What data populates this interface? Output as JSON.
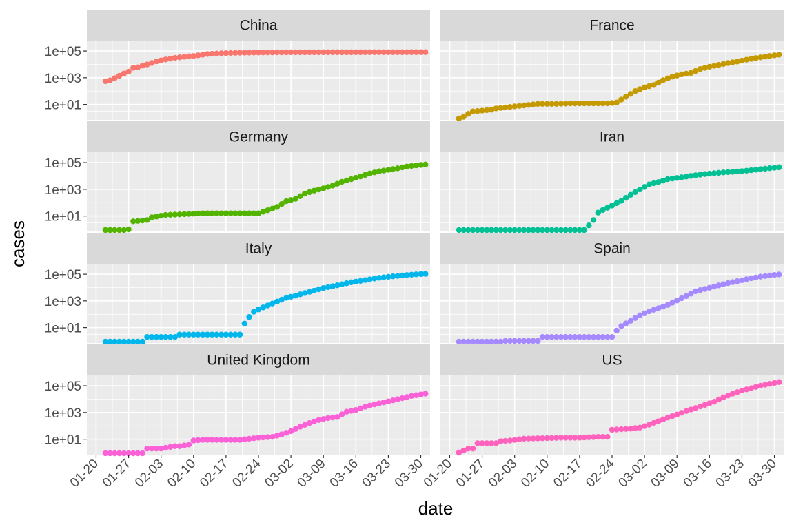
{
  "chart_data": {
    "type": "scatter",
    "facet_layout": "4 rows x 2 columns, facet_wrap by country, shared axes",
    "x_type": "date",
    "y_scale": "log10",
    "xlabel": "date",
    "ylabel": "cases",
    "xlim": [
      "2020-01-18",
      "2020-04-01"
    ],
    "ylim": [
      0.7,
      600000
    ],
    "x_ticks": [
      "2020-01-20",
      "2020-01-27",
      "2020-02-03",
      "2020-02-10",
      "2020-02-17",
      "2020-02-24",
      "2020-03-02",
      "2020-03-09",
      "2020-03-16",
      "2020-03-23",
      "2020-03-30"
    ],
    "x_tick_labels": [
      "01-20",
      "01-27",
      "02-03",
      "02-10",
      "02-17",
      "02-24",
      "03-02",
      "03-09",
      "03-16",
      "03-23",
      "03-30"
    ],
    "y_ticks": [
      10,
      1000,
      100000
    ],
    "y_tick_labels": [
      "1e+01",
      "1e+03",
      "1e+05"
    ],
    "grid": true,
    "legend": "none",
    "panel_background": "#ebebeb",
    "strip_background": "#d9d9d9",
    "facets": [
      {
        "name": "China",
        "color": "#F8766D",
        "points": [
          [
            "2020-01-22",
            548
          ],
          [
            "2020-01-23",
            643
          ],
          [
            "2020-01-24",
            920
          ],
          [
            "2020-01-25",
            1406
          ],
          [
            "2020-01-26",
            2075
          ],
          [
            "2020-01-27",
            2877
          ],
          [
            "2020-01-28",
            5509
          ],
          [
            "2020-01-29",
            6087
          ],
          [
            "2020-01-30",
            8141
          ],
          [
            "2020-01-31",
            9802
          ],
          [
            "2020-02-02",
            16630
          ],
          [
            "2020-02-04",
            23524
          ],
          [
            "2020-02-06",
            30587
          ],
          [
            "2020-02-08",
            37120
          ],
          [
            "2020-02-10",
            42306
          ],
          [
            "2020-02-13",
            59865
          ],
          [
            "2020-02-16",
            68347
          ],
          [
            "2020-02-20",
            74675
          ],
          [
            "2020-02-25",
            77754
          ],
          [
            "2020-03-01",
            79932
          ],
          [
            "2020-03-08",
            80699
          ],
          [
            "2020-03-15",
            81003
          ],
          [
            "2020-03-22",
            81435
          ],
          [
            "2020-03-31",
            82279
          ]
        ]
      },
      {
        "name": "France",
        "color": "#C49A00",
        "points": [
          [
            "2020-01-22",
            0
          ],
          [
            "2020-01-24",
            2
          ],
          [
            "2020-01-25",
            3
          ],
          [
            "2020-01-29",
            4
          ],
          [
            "2020-01-30",
            5
          ],
          [
            "2020-02-01",
            6
          ],
          [
            "2020-02-08",
            11
          ],
          [
            "2020-02-12",
            11
          ],
          [
            "2020-02-15",
            12
          ],
          [
            "2020-02-23",
            12
          ],
          [
            "2020-02-25",
            14
          ],
          [
            "2020-02-27",
            38
          ],
          [
            "2020-02-29",
            100
          ],
          [
            "2020-03-02",
            191
          ],
          [
            "2020-03-04",
            285
          ],
          [
            "2020-03-06",
            653
          ],
          [
            "2020-03-08",
            1209
          ],
          [
            "2020-03-10",
            1784
          ],
          [
            "2020-03-12",
            2284
          ],
          [
            "2020-03-14",
            4499
          ],
          [
            "2020-03-16",
            6650
          ],
          [
            "2020-03-18",
            9105
          ],
          [
            "2020-03-20",
            12612
          ],
          [
            "2020-03-22",
            16243
          ],
          [
            "2020-03-24",
            22304
          ],
          [
            "2020-03-26",
            29551
          ],
          [
            "2020-03-28",
            38105
          ],
          [
            "2020-03-31",
            52827
          ]
        ]
      },
      {
        "name": "Germany",
        "color": "#53B400",
        "points": [
          [
            "2020-01-22",
            0
          ],
          [
            "2020-01-26",
            0
          ],
          [
            "2020-01-27",
            1
          ],
          [
            "2020-01-28",
            4
          ],
          [
            "2020-01-31",
            5
          ],
          [
            "2020-02-01",
            8
          ],
          [
            "2020-02-04",
            12
          ],
          [
            "2020-02-12",
            16
          ],
          [
            "2020-02-21",
            16
          ],
          [
            "2020-02-24",
            16
          ],
          [
            "2020-02-26",
            27
          ],
          [
            "2020-02-28",
            48
          ],
          [
            "2020-03-01",
            130
          ],
          [
            "2020-03-03",
            196
          ],
          [
            "2020-03-05",
            482
          ],
          [
            "2020-03-07",
            799
          ],
          [
            "2020-03-09",
            1176
          ],
          [
            "2020-03-11",
            1908
          ],
          [
            "2020-03-13",
            3675
          ],
          [
            "2020-03-15",
            5795
          ],
          [
            "2020-03-17",
            9257
          ],
          [
            "2020-03-19",
            15320
          ],
          [
            "2020-03-21",
            22213
          ],
          [
            "2020-03-23",
            29056
          ],
          [
            "2020-03-25",
            37323
          ],
          [
            "2020-03-27",
            50871
          ],
          [
            "2020-03-29",
            62095
          ],
          [
            "2020-03-31",
            71808
          ]
        ]
      },
      {
        "name": "Iran",
        "color": "#00C094",
        "points": [
          [
            "2020-01-22",
            0
          ],
          [
            "2020-01-29",
            0
          ],
          [
            "2020-02-05",
            0
          ],
          [
            "2020-02-12",
            0
          ],
          [
            "2020-02-18",
            0
          ],
          [
            "2020-02-19",
            2
          ],
          [
            "2020-02-20",
            5
          ],
          [
            "2020-02-21",
            18
          ],
          [
            "2020-02-22",
            28
          ],
          [
            "2020-02-24",
            61
          ],
          [
            "2020-02-26",
            139
          ],
          [
            "2020-02-28",
            388
          ],
          [
            "2020-03-01",
            978
          ],
          [
            "2020-03-03",
            2336
          ],
          [
            "2020-03-05",
            3513
          ],
          [
            "2020-03-07",
            5823
          ],
          [
            "2020-03-09",
            7161
          ],
          [
            "2020-03-11",
            9000
          ],
          [
            "2020-03-13",
            11364
          ],
          [
            "2020-03-15",
            13938
          ],
          [
            "2020-03-17",
            16169
          ],
          [
            "2020-03-19",
            18407
          ],
          [
            "2020-03-21",
            20610
          ],
          [
            "2020-03-23",
            23049
          ],
          [
            "2020-03-25",
            27017
          ],
          [
            "2020-03-27",
            32332
          ],
          [
            "2020-03-29",
            38309
          ],
          [
            "2020-03-31",
            44605
          ]
        ]
      },
      {
        "name": "Italy",
        "color": "#00B6EB",
        "points": [
          [
            "2020-01-22",
            0
          ],
          [
            "2020-01-26",
            0
          ],
          [
            "2020-01-30",
            0
          ],
          [
            "2020-01-31",
            2
          ],
          [
            "2020-02-03",
            2
          ],
          [
            "2020-02-06",
            2
          ],
          [
            "2020-02-07",
            3
          ],
          [
            "2020-02-12",
            3
          ],
          [
            "2020-02-20",
            3
          ],
          [
            "2020-02-21",
            20
          ],
          [
            "2020-02-22",
            62
          ],
          [
            "2020-02-23",
            155
          ],
          [
            "2020-02-24",
            229
          ],
          [
            "2020-02-26",
            453
          ],
          [
            "2020-02-28",
            888
          ],
          [
            "2020-03-01",
            1694
          ],
          [
            "2020-03-03",
            2502
          ],
          [
            "2020-03-05",
            3858
          ],
          [
            "2020-03-07",
            5883
          ],
          [
            "2020-03-09",
            9172
          ],
          [
            "2020-03-11",
            12462
          ],
          [
            "2020-03-13",
            17660
          ],
          [
            "2020-03-15",
            24747
          ],
          [
            "2020-03-17",
            31506
          ],
          [
            "2020-03-19",
            41035
          ],
          [
            "2020-03-21",
            53578
          ],
          [
            "2020-03-23",
            63927
          ],
          [
            "2020-03-25",
            74386
          ],
          [
            "2020-03-27",
            86498
          ],
          [
            "2020-03-29",
            97689
          ],
          [
            "2020-03-31",
            105792
          ]
        ]
      },
      {
        "name": "Spain",
        "color": "#A58AFF",
        "points": [
          [
            "2020-01-22",
            0
          ],
          [
            "2020-01-26",
            0
          ],
          [
            "2020-01-31",
            0
          ],
          [
            "2020-02-01",
            1
          ],
          [
            "2020-02-05",
            1
          ],
          [
            "2020-02-08",
            1
          ],
          [
            "2020-02-09",
            2
          ],
          [
            "2020-02-15",
            2
          ],
          [
            "2020-02-24",
            2
          ],
          [
            "2020-02-25",
            6
          ],
          [
            "2020-02-26",
            13
          ],
          [
            "2020-02-28",
            32
          ],
          [
            "2020-03-01",
            84
          ],
          [
            "2020-03-03",
            165
          ],
          [
            "2020-03-05",
            282
          ],
          [
            "2020-03-07",
            500
          ],
          [
            "2020-03-09",
            1073
          ],
          [
            "2020-03-11",
            2277
          ],
          [
            "2020-03-13",
            5232
          ],
          [
            "2020-03-15",
            7798
          ],
          [
            "2020-03-17",
            11748
          ],
          [
            "2020-03-19",
            17963
          ],
          [
            "2020-03-21",
            25374
          ],
          [
            "2020-03-23",
            35136
          ],
          [
            "2020-03-25",
            49515
          ],
          [
            "2020-03-27",
            65719
          ],
          [
            "2020-03-29",
            80110
          ],
          [
            "2020-03-31",
            95923
          ]
        ]
      },
      {
        "name": "United Kingdom",
        "color": "#FB61D7",
        "points": [
          [
            "2020-01-22",
            0
          ],
          [
            "2020-01-26",
            0
          ],
          [
            "2020-01-30",
            0
          ],
          [
            "2020-01-31",
            2
          ],
          [
            "2020-02-03",
            2
          ],
          [
            "2020-02-06",
            3
          ],
          [
            "2020-02-07",
            3
          ],
          [
            "2020-02-09",
            4
          ],
          [
            "2020-02-10",
            8
          ],
          [
            "2020-02-12",
            9
          ],
          [
            "2020-02-16",
            9
          ],
          [
            "2020-02-20",
            9
          ],
          [
            "2020-02-24",
            13
          ],
          [
            "2020-02-27",
            15
          ],
          [
            "2020-02-29",
            23
          ],
          [
            "2020-03-02",
            40
          ],
          [
            "2020-03-04",
            86
          ],
          [
            "2020-03-06",
            164
          ],
          [
            "2020-03-08",
            274
          ],
          [
            "2020-03-10",
            384
          ],
          [
            "2020-03-12",
            459
          ],
          [
            "2020-03-14",
            1143
          ],
          [
            "2020-03-16",
            1553
          ],
          [
            "2020-03-18",
            2689
          ],
          [
            "2020-03-20",
            4014
          ],
          [
            "2020-03-22",
            5741
          ],
          [
            "2020-03-24",
            8164
          ],
          [
            "2020-03-26",
            11812
          ],
          [
            "2020-03-28",
            17312
          ],
          [
            "2020-03-31",
            25481
          ]
        ]
      },
      {
        "name": "US",
        "color": "#FF62BC",
        "points": [
          [
            "2020-01-22",
            1
          ],
          [
            "2020-01-24",
            2
          ],
          [
            "2020-01-25",
            2
          ],
          [
            "2020-01-26",
            5
          ],
          [
            "2020-01-30",
            5
          ],
          [
            "2020-01-31",
            7
          ],
          [
            "2020-02-02",
            8
          ],
          [
            "2020-02-05",
            11
          ],
          [
            "2020-02-10",
            12
          ],
          [
            "2020-02-13",
            13
          ],
          [
            "2020-02-17",
            13
          ],
          [
            "2020-02-21",
            15
          ],
          [
            "2020-02-23",
            15
          ],
          [
            "2020-02-24",
            51
          ],
          [
            "2020-02-28",
            62
          ],
          [
            "2020-03-01",
            74
          ],
          [
            "2020-03-03",
            122
          ],
          [
            "2020-03-05",
            221
          ],
          [
            "2020-03-07",
            417
          ],
          [
            "2020-03-09",
            703
          ],
          [
            "2020-03-11",
            1281
          ],
          [
            "2020-03-13",
            2179
          ],
          [
            "2020-03-15",
            3680
          ],
          [
            "2020-03-17",
            6421
          ],
          [
            "2020-03-19",
            13677
          ],
          [
            "2020-03-21",
            25489
          ],
          [
            "2020-03-23",
            43847
          ],
          [
            "2020-03-25",
            65778
          ],
          [
            "2020-03-27",
            101657
          ],
          [
            "2020-03-29",
            140886
          ],
          [
            "2020-03-31",
            188172
          ]
        ]
      }
    ]
  }
}
